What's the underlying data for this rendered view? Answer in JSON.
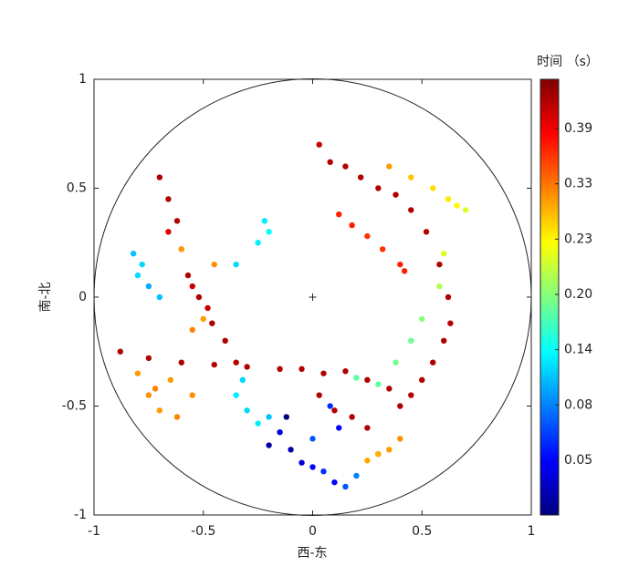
{
  "chart_data": {
    "type": "scatter",
    "xlabel": "西-东",
    "ylabel": "南-北",
    "colorbar_label": "时间 （s）",
    "xlim": [
      -1,
      1
    ],
    "ylim": [
      -1,
      1
    ],
    "xticks": [
      -1,
      -0.5,
      0,
      0.5,
      1
    ],
    "yticks": [
      -1,
      -0.5,
      0,
      0.5,
      1
    ],
    "cticks": [
      0.05,
      0.08,
      0.14,
      {
        "value": 0.2,
        "label": "0.20"
      },
      0.23,
      0.33,
      0.39
    ],
    "colormap": "jet",
    "x": [
      -0.88,
      -0.75,
      -0.6,
      -0.45,
      -0.3,
      -0.15,
      -0.05,
      0.05,
      0.03,
      0.1,
      0.18,
      0.25,
      0.3,
      -0.7,
      -0.66,
      -0.62,
      -0.6,
      -0.57,
      -0.52,
      -0.46,
      -0.4,
      -0.35,
      -0.66,
      -0.55,
      -0.48,
      0.03,
      0.08,
      0.15,
      0.22,
      0.3,
      0.38,
      0.45,
      0.52,
      0.58,
      0.62,
      0.63,
      0.6,
      0.55,
      0.5,
      0.45,
      0.4,
      0.35,
      0.25,
      0.15,
      0.12,
      0.18,
      0.25,
      0.32,
      0.4,
      0.42,
      0.35,
      0.45,
      0.55,
      0.62,
      0.66,
      0.7,
      0.6,
      0.58,
      0.5,
      0.45,
      0.38,
      0.3,
      0.2,
      -0.1,
      -0.05,
      0.0,
      0.05,
      0.1,
      0.15,
      0.2,
      -0.15,
      -0.2,
      0.08,
      -0.12,
      0.12,
      0.0,
      -0.82,
      -0.8,
      -0.75,
      -0.7,
      -0.78,
      -0.35,
      -0.3,
      -0.25,
      -0.2,
      -0.32,
      -0.25,
      -0.2,
      -0.22,
      -0.35,
      -0.8,
      -0.75,
      -0.7,
      -0.62,
      -0.55,
      -0.65,
      -0.72,
      -0.5,
      -0.45,
      -0.55,
      -0.6,
      0.25,
      0.35,
      0.4,
      0.3
    ],
    "y": [
      -0.25,
      -0.28,
      -0.3,
      -0.31,
      -0.32,
      -0.33,
      -0.33,
      -0.35,
      -0.45,
      -0.52,
      -0.55,
      -0.6,
      -0.72,
      0.55,
      0.45,
      0.35,
      0.22,
      0.1,
      0.0,
      -0.12,
      -0.2,
      -0.3,
      0.3,
      0.05,
      -0.05,
      0.7,
      0.62,
      0.6,
      0.55,
      0.5,
      0.47,
      0.4,
      0.3,
      0.15,
      0.0,
      -0.12,
      -0.2,
      -0.3,
      -0.38,
      -0.45,
      -0.5,
      -0.42,
      -0.38,
      -0.34,
      0.38,
      0.33,
      0.28,
      0.22,
      0.15,
      0.12,
      0.6,
      0.55,
      0.5,
      0.45,
      0.42,
      0.4,
      0.2,
      0.05,
      -0.1,
      -0.2,
      -0.3,
      -0.4,
      -0.37,
      -0.7,
      -0.76,
      -0.78,
      -0.8,
      -0.85,
      -0.87,
      -0.82,
      -0.62,
      -0.68,
      -0.5,
      -0.55,
      -0.6,
      -0.65,
      0.2,
      0.1,
      0.05,
      0.0,
      0.15,
      -0.45,
      -0.52,
      -0.58,
      -0.55,
      -0.38,
      0.25,
      0.3,
      0.35,
      0.15,
      -0.35,
      -0.45,
      -0.52,
      -0.55,
      -0.45,
      -0.38,
      -0.42,
      -0.1,
      0.15,
      -0.15,
      0.22,
      -0.75,
      -0.7,
      -0.65,
      -0.72
    ],
    "c": [
      0.42,
      0.42,
      0.42,
      0.42,
      0.42,
      0.42,
      0.42,
      0.42,
      0.42,
      0.42,
      0.42,
      0.42,
      0.42,
      0.42,
      0.42,
      0.42,
      0.42,
      0.42,
      0.42,
      0.42,
      0.42,
      0.42,
      0.4,
      0.41,
      0.41,
      0.41,
      0.42,
      0.42,
      0.42,
      0.42,
      0.42,
      0.42,
      0.42,
      0.42,
      0.42,
      0.42,
      0.42,
      0.42,
      0.42,
      0.42,
      0.42,
      0.42,
      0.42,
      0.42,
      0.37,
      0.37,
      0.36,
      0.36,
      0.37,
      0.37,
      0.3,
      0.27,
      0.25,
      0.24,
      0.23,
      0.22,
      0.22,
      0.21,
      0.2,
      0.19,
      0.19,
      0.18,
      0.18,
      0.03,
      0.04,
      0.05,
      0.06,
      0.05,
      0.07,
      0.08,
      0.04,
      0.03,
      0.06,
      0.02,
      0.05,
      0.07,
      0.11,
      0.12,
      0.1,
      0.11,
      0.12,
      0.13,
      0.12,
      0.13,
      0.11,
      0.12,
      0.13,
      0.14,
      0.13,
      0.12,
      0.3,
      0.31,
      0.3,
      0.32,
      0.31,
      0.3,
      0.32,
      0.3,
      0.31,
      0.32,
      0.3,
      0.29,
      0.3,
      0.31,
      0.28
    ]
  }
}
